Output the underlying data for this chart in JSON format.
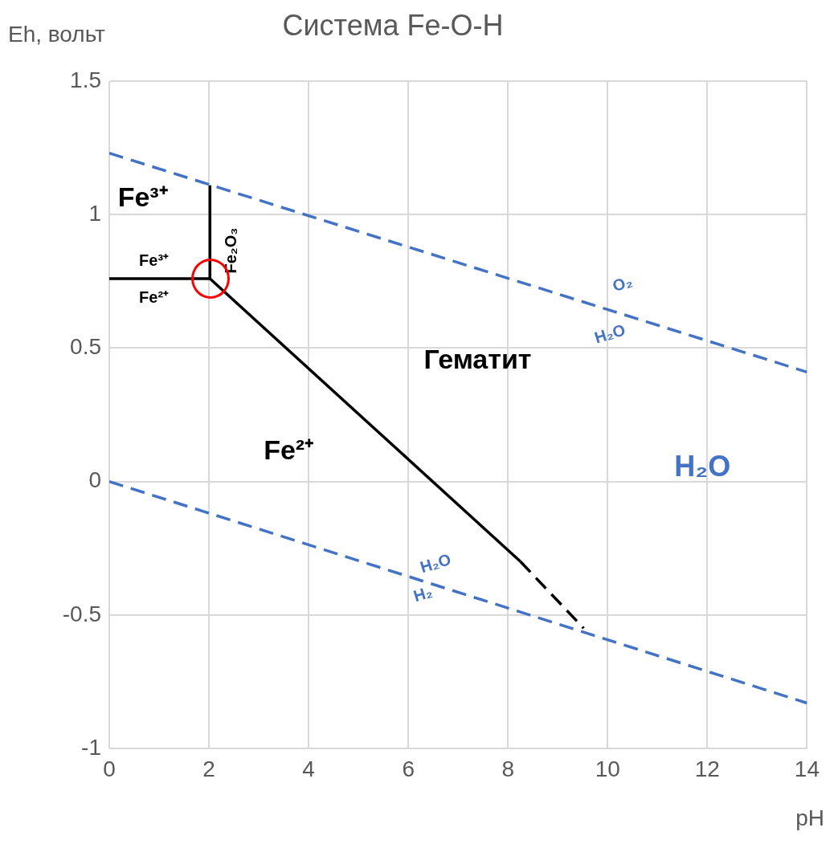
{
  "chart_data": {
    "type": "line",
    "title": "Система Fe-O-H",
    "xlabel": "pH",
    "ylabel": "Eh, вольт",
    "xlim": [
      0,
      14
    ],
    "xticks": [
      0,
      2,
      4,
      6,
      8,
      10,
      12,
      14
    ],
    "ylim": [
      -1,
      1.5
    ],
    "yticks": [
      -1,
      -0.5,
      0,
      0.5,
      1,
      1.5
    ],
    "grid": true,
    "legend": false,
    "marker": "none",
    "series": [
      {
        "color": "#4472c4",
        "line_style": "dashed",
        "x": [
          0,
          14
        ],
        "values": [
          1.23,
          0.41
        ]
      },
      {
        "color": "#4472c4",
        "line_style": "dashed",
        "x": [
          0,
          14
        ],
        "values": [
          0,
          -0.83
        ]
      },
      {
        "color": "#000000",
        "line_style": "solid",
        "x": [
          0,
          2.02
        ],
        "values": [
          0.76,
          0.76
        ]
      },
      {
        "color": "#000000",
        "line_style": "solid",
        "x": [
          2.02,
          2.02
        ],
        "values": [
          0.76,
          1.11
        ]
      },
      {
        "color": "#000000",
        "line_style": "solid",
        "x": [
          2.02,
          8.25
        ],
        "values": [
          0.76,
          -0.3
        ]
      },
      {
        "color": "#000000",
        "line_style": "dashed",
        "x": [
          8.25,
          9.52
        ],
        "values": [
          -0.3,
          -0.55
        ]
      }
    ],
    "annotations": [
      "Fe³⁺",
      "Fe³⁺",
      "Fe²⁺",
      "Fe₂O₃",
      "Гематит",
      "Fe²⁺",
      "H₂O",
      "O₂",
      "H₂O",
      "H₂O",
      "H₂"
    ]
  }
}
